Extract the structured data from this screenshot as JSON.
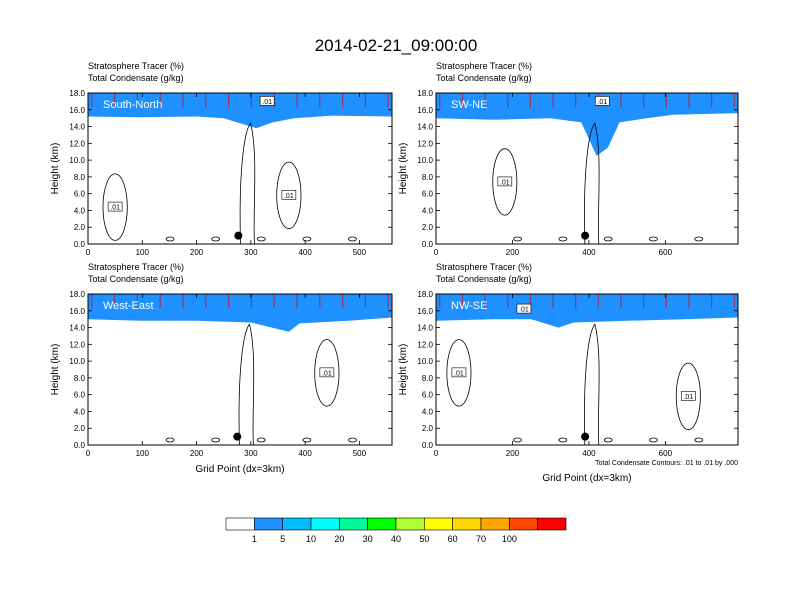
{
  "title": "2014-02-21_09:00:00",
  "panel_subtitle_lines": [
    "Stratosphere Tracer   (%)",
    "Total Condensate   (g/kg)"
  ],
  "ylabel": "Height (km)",
  "xlabel": "Grid Point (dx=3km)",
  "contour_note": "Total Condensate Contours: .01 to .01 by .000",
  "colors": {
    "scale": [
      "#ffffff",
      "#1e90ff",
      "#00bfff",
      "#00ffff",
      "#00fa9a",
      "#00ff00",
      "#adff2f",
      "#ffff00",
      "#ffd700",
      "#ffa500",
      "#ff4500",
      "#ff0000"
    ],
    "band_colors": [
      "#ff0000",
      "#ff2a00",
      "#ff5a00",
      "#ff9200",
      "#ffc800",
      "#fff200",
      "#adff2f",
      "#00ff00",
      "#00fa9a",
      "#00ffff",
      "#1e90ff"
    ],
    "label_color": "#ffffff"
  },
  "colorbar_labels": [
    "1",
    "5",
    "10",
    "20",
    "30",
    "40",
    "50",
    "60",
    "70",
    "100"
  ],
  "chart_data": [
    {
      "type": "heatmap",
      "label": "South-North",
      "xlim": [
        0,
        560
      ],
      "ylim": [
        0,
        18
      ],
      "x_ticks": [
        0,
        100,
        200,
        300,
        400,
        500
      ],
      "y_ticks": [
        "0.0",
        "2.0",
        "4.0",
        "6.0",
        "8.0",
        "10.0",
        "12.0",
        "14.0",
        "16.0",
        "18.0"
      ],
      "contour_labels": [
        {
          "text": ".01",
          "x": 50,
          "y": 4.4
        },
        {
          "text": ".01",
          "x": 370,
          "y": 5.8
        },
        {
          "text": ".01",
          "x": 330,
          "y": 17.0
        }
      ],
      "marker": {
        "x": 277,
        "y": 1.0
      },
      "tracer_boundary": [
        [
          0,
          15.2
        ],
        [
          100,
          15.1
        ],
        [
          200,
          15.2
        ],
        [
          250,
          15.0
        ],
        [
          290,
          14.2
        ],
        [
          310,
          13.8
        ],
        [
          340,
          14.5
        ],
        [
          380,
          15.0
        ],
        [
          450,
          15.3
        ],
        [
          560,
          15.2
        ]
      ]
    },
    {
      "type": "heatmap",
      "label": "SW-NE",
      "xlim": [
        0,
        790
      ],
      "ylim": [
        0,
        18
      ],
      "x_ticks": [
        0,
        200,
        400,
        600
      ],
      "y_ticks": [
        "0.0",
        "2.0",
        "4.0",
        "6.0",
        "8.0",
        "10.0",
        "12.0",
        "14.0",
        "16.0",
        "18.0"
      ],
      "contour_labels": [
        {
          "text": ".01",
          "x": 180,
          "y": 7.4
        },
        {
          "text": ".01",
          "x": 435,
          "y": 17.0
        }
      ],
      "marker": {
        "x": 390,
        "y": 1.0
      },
      "tracer_boundary": [
        [
          0,
          15.0
        ],
        [
          150,
          14.8
        ],
        [
          300,
          15.0
        ],
        [
          380,
          14.5
        ],
        [
          420,
          10.5
        ],
        [
          450,
          11.5
        ],
        [
          480,
          14.5
        ],
        [
          550,
          15.0
        ],
        [
          620,
          15.4
        ],
        [
          790,
          15.6
        ]
      ]
    },
    {
      "type": "heatmap",
      "label": "West-East",
      "xlim": [
        0,
        560
      ],
      "ylim": [
        0,
        18
      ],
      "x_ticks": [
        0,
        100,
        200,
        300,
        400,
        500
      ],
      "y_ticks": [
        "0.0",
        "2.0",
        "4.0",
        "6.0",
        "8.0",
        "10.0",
        "12.0",
        "14.0",
        "16.0",
        "18.0"
      ],
      "contour_labels": [
        {
          "text": ".01",
          "x": 440,
          "y": 8.6
        }
      ],
      "marker": {
        "x": 275,
        "y": 1.0
      },
      "tracer_boundary": [
        [
          0,
          15.0
        ],
        [
          100,
          14.8
        ],
        [
          200,
          14.8
        ],
        [
          300,
          14.6
        ],
        [
          370,
          13.5
        ],
        [
          390,
          14.5
        ],
        [
          480,
          14.8
        ],
        [
          560,
          15.2
        ]
      ]
    },
    {
      "type": "heatmap",
      "label": "NW-SE",
      "xlim": [
        0,
        790
      ],
      "ylim": [
        0,
        18
      ],
      "x_ticks": [
        0,
        200,
        400,
        600
      ],
      "y_ticks": [
        "0.0",
        "2.0",
        "4.0",
        "6.0",
        "8.0",
        "10.0",
        "12.0",
        "14.0",
        "16.0",
        "18.0"
      ],
      "contour_labels": [
        {
          "text": ".01",
          "x": 60,
          "y": 8.6
        },
        {
          "text": ".01",
          "x": 230,
          "y": 16.2
        },
        {
          "text": ".01",
          "x": 660,
          "y": 5.8
        }
      ],
      "marker": {
        "x": 390,
        "y": 1.0
      },
      "tracer_boundary": [
        [
          0,
          14.8
        ],
        [
          150,
          15.0
        ],
        [
          250,
          15.0
        ],
        [
          320,
          14.0
        ],
        [
          360,
          14.6
        ],
        [
          500,
          14.8
        ],
        [
          650,
          15.0
        ],
        [
          790,
          15.2
        ]
      ]
    }
  ]
}
